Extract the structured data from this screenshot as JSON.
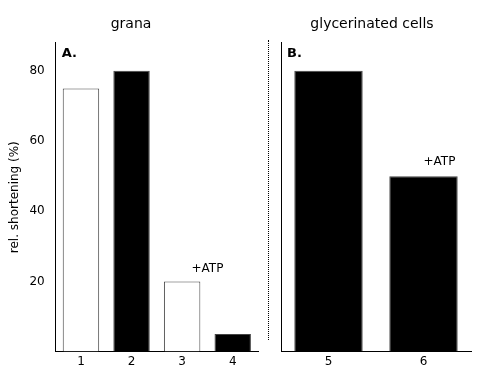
{
  "chart_data": [
    {
      "type": "bar",
      "title": "grana",
      "ylabel": "rel. shortening (%)",
      "categories": [
        "1",
        "2",
        "3",
        "4"
      ],
      "values": [
        75,
        80,
        20,
        5
      ],
      "colors": [
        "white",
        "black",
        "white",
        "black"
      ],
      "ylim": [
        0,
        88
      ],
      "yticks": [
        20,
        40,
        60,
        80
      ],
      "grid": false,
      "annotations": [
        {
          "text": "A."
        },
        {
          "text": "+ATP",
          "x": [
            "3",
            "4"
          ],
          "y": 21.5
        }
      ]
    },
    {
      "type": "bar",
      "title": "glycerinated cells",
      "categories": [
        "5",
        "6"
      ],
      "values": [
        80,
        50
      ],
      "colors": [
        "black",
        "black"
      ],
      "ylim": [
        0,
        88
      ],
      "yticks": [
        20,
        40,
        60,
        80
      ],
      "grid": false,
      "tick_labels": "x",
      "annotations": [
        {
          "text": "B."
        },
        {
          "text": "+ATP",
          "x": "6",
          "y": 52
        }
      ]
    }
  ]
}
